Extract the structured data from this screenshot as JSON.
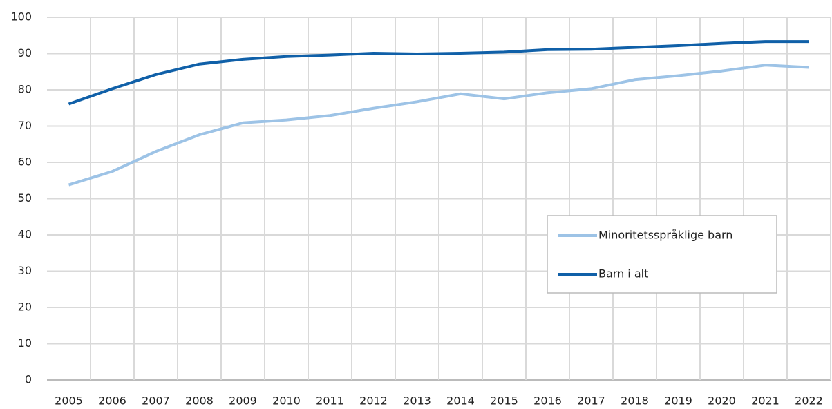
{
  "chart_data": {
    "type": "line",
    "categories": [
      "2005",
      "2006",
      "2007",
      "2008",
      "2009",
      "2010",
      "2011",
      "2012",
      "2013",
      "2014",
      "2015",
      "2016",
      "2017",
      "2018",
      "2019",
      "2020",
      "2021",
      "2022"
    ],
    "series": [
      {
        "name": "Minoritetsspråklige barn",
        "color": "#9dc3e6",
        "values": [
          53.8,
          57.5,
          63,
          67.6,
          70.9,
          71.7,
          72.9,
          74.9,
          76.7,
          78.9,
          77.5,
          79.2,
          80.3,
          82.8,
          83.9,
          85.2,
          86.8,
          86.2
        ]
      },
      {
        "name": "Barn i alt",
        "color": "#1060a8",
        "values": [
          76.1,
          80.3,
          84.2,
          87.1,
          88.4,
          89.2,
          89.6,
          90.1,
          89.9,
          90.1,
          90.4,
          91.1,
          91.2,
          91.7,
          92.2,
          92.8,
          93.3,
          93.3
        ]
      }
    ],
    "ylim": [
      0,
      100
    ],
    "yticks": [
      0,
      10,
      20,
      30,
      40,
      50,
      60,
      70,
      80,
      90,
      100
    ],
    "grid": true
  }
}
